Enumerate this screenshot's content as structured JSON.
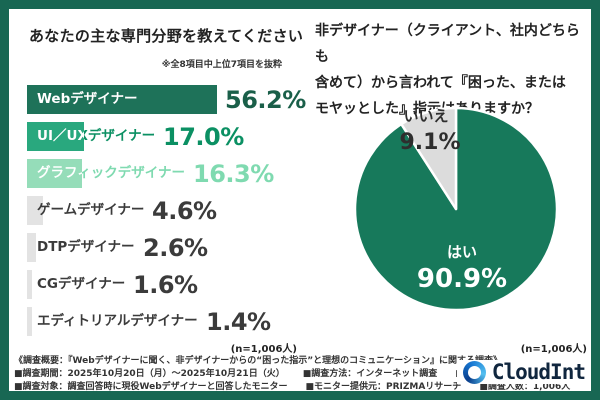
{
  "chart_data": [
    {
      "type": "bar",
      "orientation": "horizontal",
      "title": "あなたの主な専門分野を教えてください",
      "note": "※全8項目中上位7項目を抜粋",
      "n_label": "(n=1,006人)",
      "categories": [
        "Webデザイナー",
        "UI／UXデザイナー",
        "グラフィックデザイナー",
        "ゲームデザイナー",
        "DTPデザイナー",
        "CGデザイナー",
        "エディトリアルデザイナー"
      ],
      "values": [
        56.2,
        17.0,
        16.3,
        4.6,
        2.6,
        1.6,
        1.4
      ],
      "value_labels": [
        "56.2%",
        "17.0%",
        "16.3%",
        "4.6%",
        "2.6%",
        "1.6%",
        "1.4%"
      ],
      "bar_colors": [
        "#1E7259",
        "#29A87E",
        "#95DDB9",
        "#E3E3E3",
        "#E3E3E3",
        "#E3E3E3",
        "#E3E3E3"
      ],
      "value_colors": [
        "#1A5F49",
        "#0B9063",
        "#7FDAB0",
        "#3B3B3B",
        "#3B3B3B",
        "#3B3B3B",
        "#3B3B3B"
      ],
      "label_on_bar": [
        true,
        true,
        true,
        false,
        false,
        false,
        false
      ],
      "grid": false,
      "xlim": [
        0,
        60
      ]
    },
    {
      "type": "pie",
      "title": "非デザイナー（クライアント、社内どちらも\n含めて）から言われて『困った、または\nモヤッとした』指示はありますか？",
      "n_label": "(n=1,006人)",
      "labels": [
        "はい",
        "いいえ"
      ],
      "values": [
        90.9,
        9.1
      ],
      "value_labels": [
        "90.9%",
        "9.1%"
      ],
      "colors": [
        "#17795B",
        "#DCDCDC"
      ],
      "label_colors": [
        "#FFFFFF",
        "#2E2E2E"
      ],
      "start_angle": "top",
      "direction": "clockwise"
    }
  ],
  "frame_color": "#186753",
  "footer": {
    "lines": [
      [
        "《調査概要：『Webデザイナーに聞く、非デザイナーからの“困った指示”と理想のコミュニケーション』に関する調査》"
      ],
      [
        "■調査期間：2025年10月20日（月）～2025年10月21日（火）",
        "■調査方法：インターネット調査",
        "■調査元：CloudInt"
      ],
      [
        "■調査対象：調査回答時に現役Webデザイナーと回答したモニター",
        "■モニター提供元：PRIZMAリサーチ",
        "■調査人数：1,006人"
      ]
    ],
    "brand": "CloudInt"
  }
}
